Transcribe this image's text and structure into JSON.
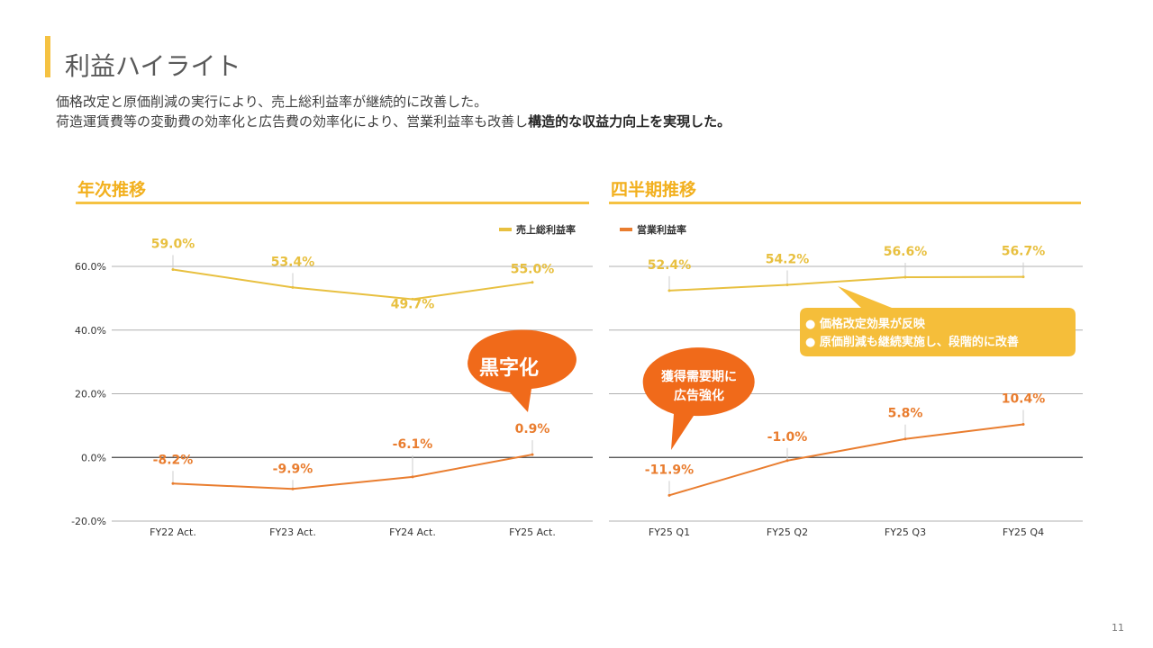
{
  "header": {
    "title": "利益ハイライト",
    "line1": "価格改定と原価削減の実行により、売上総利益率が継続的に改善した。",
    "line2_plain": "荷造運賃費等の変動費の効率化と広告費の効率化により、営業利益率も改善し",
    "line2_bold": "構造的な収益力向上を実現した。"
  },
  "colors": {
    "accent": "#F5C242",
    "gross": "#E8C040",
    "operating": "#E97D2F",
    "callout_orange": "#F06A1A",
    "callout_yellow": "#F5BE3A",
    "grid": "#B0B0B0",
    "section_title": "#F2B01E"
  },
  "sections": {
    "annual": "年次推移",
    "quarterly": "四半期推移"
  },
  "legend": [
    {
      "label": "売上総利益率",
      "color": "#E8C040"
    },
    {
      "label": "営業利益率",
      "color": "#E97D2F"
    }
  ],
  "chart_data": [
    {
      "type": "line",
      "title": "年次推移",
      "categories": [
        "FY22 Act.",
        "FY23 Act.",
        "FY24 Act.",
        "FY25 Act."
      ],
      "ylim": [
        -20,
        60
      ],
      "yticks": [
        "60.0%",
        "40.0%",
        "20.0%",
        "0.0%",
        "-20.0%"
      ],
      "series": [
        {
          "name": "売上総利益率",
          "values": [
            59.0,
            53.4,
            49.7,
            55.0
          ],
          "labels": [
            "59.0%",
            "53.4%",
            "49.7%",
            "55.0%"
          ]
        },
        {
          "name": "営業利益率",
          "values": [
            -8.2,
            -9.9,
            -6.1,
            0.9
          ],
          "labels": [
            "-8.2%",
            "-9.9%",
            "-6.1%",
            "0.9%"
          ]
        }
      ]
    },
    {
      "type": "line",
      "title": "四半期推移",
      "categories": [
        "FY25 Q1",
        "FY25 Q2",
        "FY25 Q3",
        "FY25 Q4"
      ],
      "ylim": [
        -20,
        60
      ],
      "series": [
        {
          "name": "売上総利益率",
          "values": [
            52.4,
            54.2,
            56.6,
            56.7
          ],
          "labels": [
            "52.4%",
            "54.2%",
            "56.6%",
            "56.7%"
          ]
        },
        {
          "name": "営業利益率",
          "values": [
            -11.9,
            -1.0,
            5.8,
            10.4
          ],
          "labels": [
            "-11.9%",
            "-1.0%",
            "5.8%",
            "10.4%"
          ]
        }
      ]
    }
  ],
  "callouts": {
    "profit": "黒字化",
    "ad_line1": "獲得需要期に",
    "ad_line2": "広告強化",
    "price_line1": "価格改定効果が反映",
    "price_line2": "原価削減も継続実施し、段階的に改善"
  },
  "page_number": "11"
}
